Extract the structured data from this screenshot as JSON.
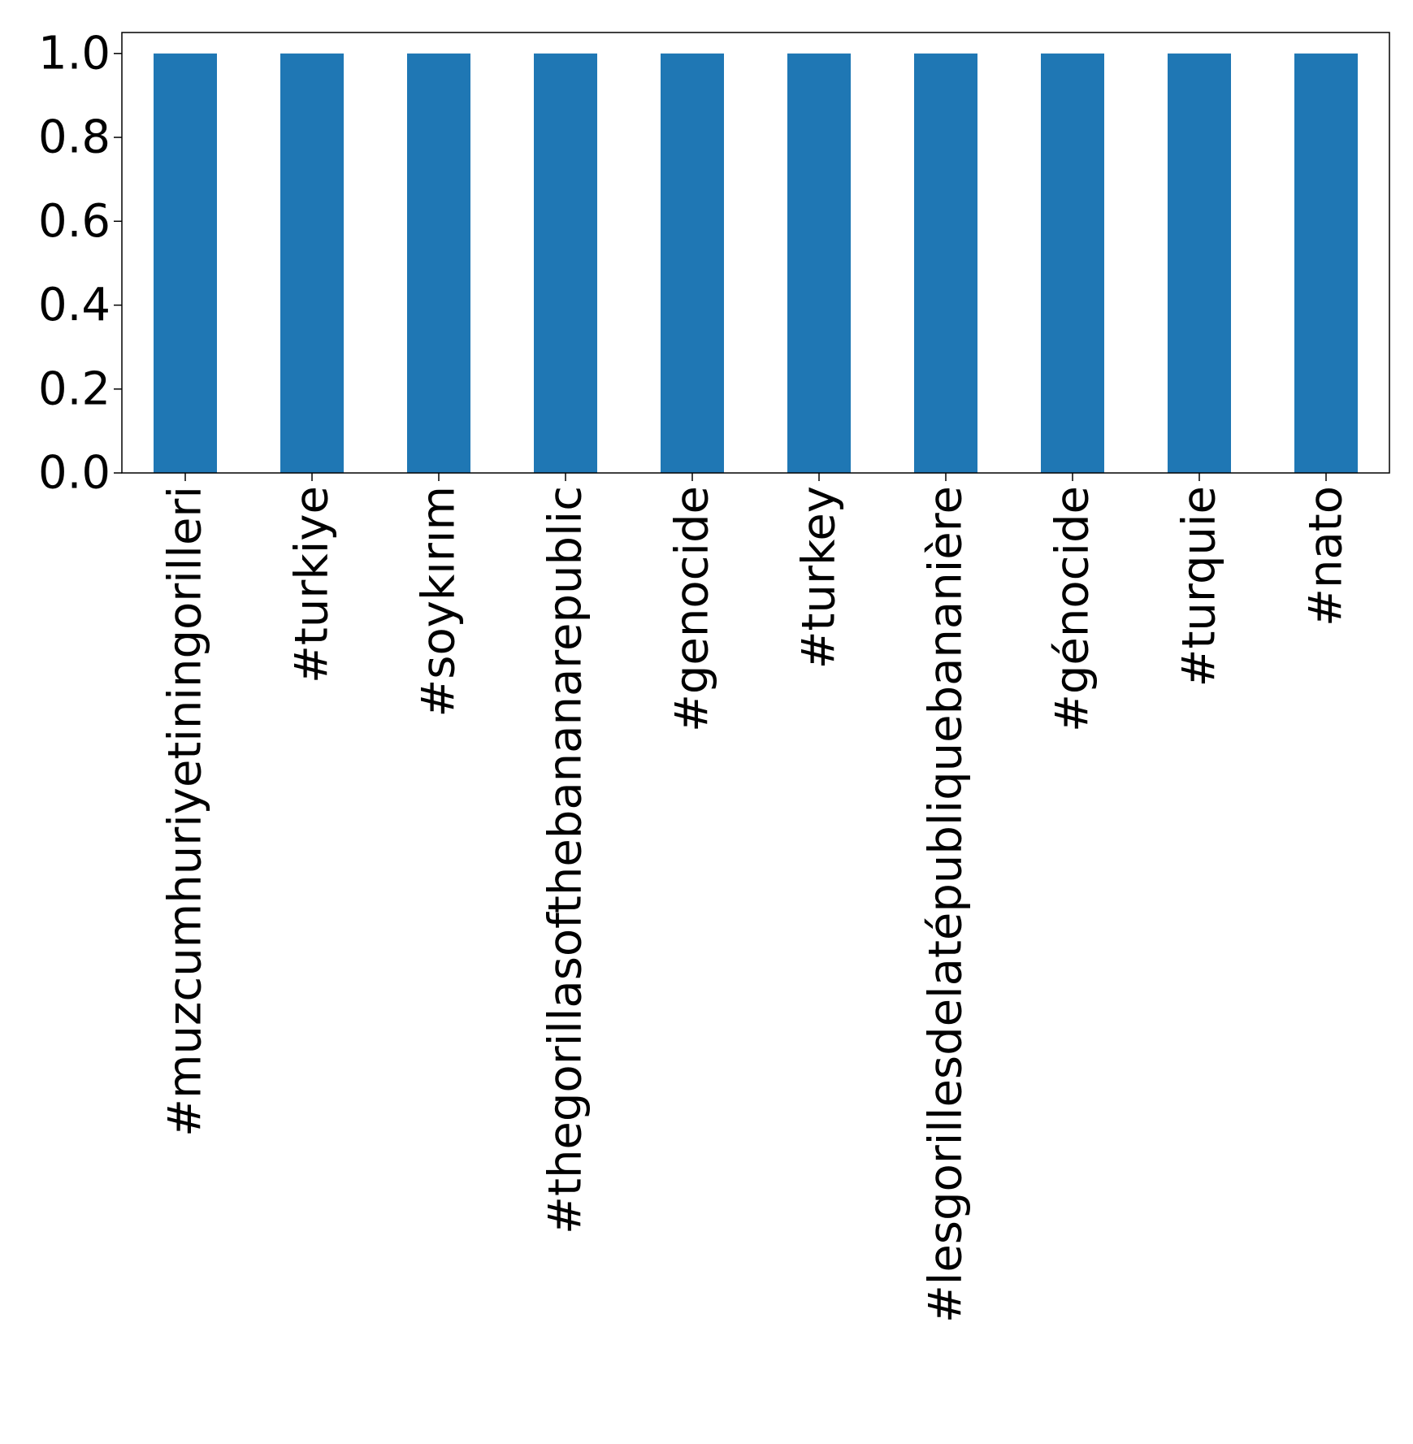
{
  "chart_data": {
    "type": "bar",
    "title": "",
    "xlabel": "",
    "ylabel": "",
    "categories": [
      "#muzcumhuriyetiningorilleri",
      "#turkiye",
      "#soykırım",
      "#thegorillasofthebananarepublic",
      "#genocide",
      "#turkey",
      "#lesgorillesdelatépubliquebananière",
      "#génocide",
      "#turquie",
      "#nato"
    ],
    "values": [
      1.0,
      1.0,
      1.0,
      1.0,
      1.0,
      1.0,
      1.0,
      1.0,
      1.0,
      1.0
    ],
    "ylim": [
      0,
      1.05
    ],
    "yticks": [
      "0.0",
      "0.2",
      "0.4",
      "0.6",
      "0.8",
      "1.0"
    ],
    "bar_color": "#1f77b4",
    "grid": false,
    "legend": "none"
  }
}
